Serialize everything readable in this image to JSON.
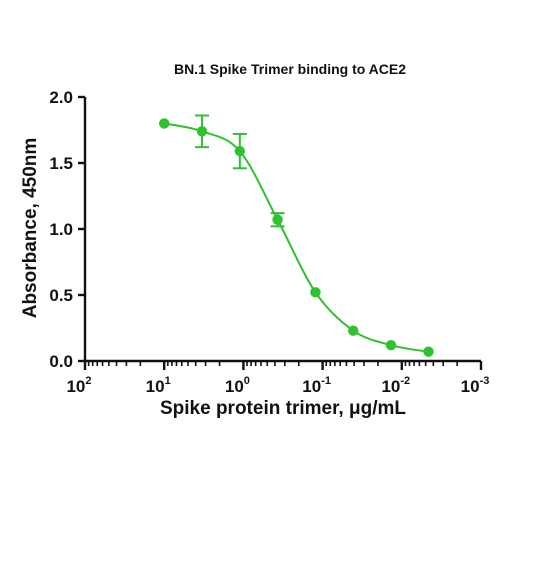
{
  "chart_data": {
    "type": "line",
    "title": "BN.1 Spike Trimer binding to ACE2",
    "xlabel": "Spike protein trimer, μg/mL",
    "ylabel": "Absorbance, 450nm",
    "x_scale": "log",
    "x_reversed": true,
    "xlim": [
      100,
      0.001
    ],
    "ylim": [
      0,
      2.0
    ],
    "y_ticks": [
      "0.0",
      "0.5",
      "1.0",
      "1.5",
      "2.0"
    ],
    "x_ticks": [
      {
        "base": "10",
        "exp": "2",
        "value": 100
      },
      {
        "base": "10",
        "exp": "1",
        "value": 10
      },
      {
        "base": "10",
        "exp": "0",
        "value": 1
      },
      {
        "base": "10",
        "exp": "-1",
        "value": 0.1
      },
      {
        "base": "10",
        "exp": "-2",
        "value": 0.01
      },
      {
        "base": "10",
        "exp": "-3",
        "value": 0.001
      }
    ],
    "grid": false,
    "legend": "none",
    "series": [
      {
        "color": "#2fc12f",
        "x": [
          10,
          3.33,
          1.11,
          0.37,
          0.123,
          0.041,
          0.0137,
          0.0046
        ],
        "y": [
          1.8,
          1.74,
          1.59,
          1.07,
          0.52,
          0.23,
          0.12,
          0.07
        ],
        "error": [
          0,
          0.12,
          0.13,
          0.05,
          0,
          0,
          0,
          0
        ]
      }
    ]
  }
}
